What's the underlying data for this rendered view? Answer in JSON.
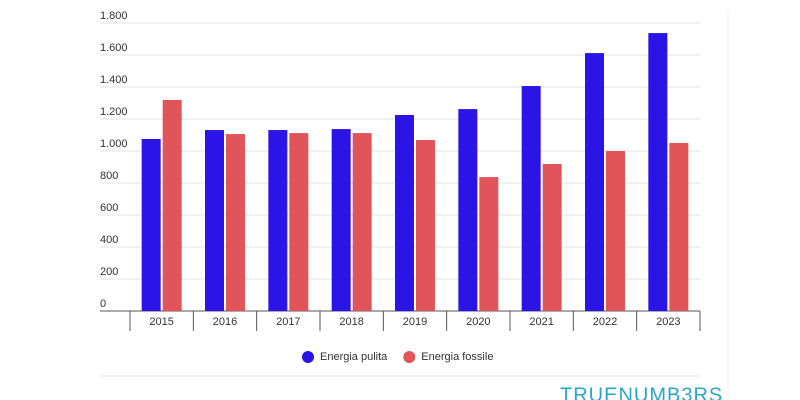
{
  "chart_data": {
    "type": "bar",
    "categories": [
      "2015",
      "2016",
      "2017",
      "2018",
      "2019",
      "2020",
      "2021",
      "2022",
      "2023"
    ],
    "series": [
      {
        "name": "Energia pulita",
        "color": "#2b14e6",
        "values": [
          1075,
          1131,
          1131,
          1137,
          1225,
          1262,
          1406,
          1612,
          1737
        ]
      },
      {
        "name": "Energia fossile",
        "color": "#e0545a",
        "values": [
          1319,
          1106,
          1112,
          1112,
          1069,
          837,
          919,
          1000,
          1050
        ]
      }
    ],
    "ylim": [
      0,
      1800
    ],
    "yticks": [
      0,
      200,
      400,
      600,
      800,
      {
        "value": 1000,
        "label": "1.000"
      },
      {
        "value": 1200,
        "label": "1.200"
      },
      {
        "value": 1400,
        "label": "1.400"
      },
      {
        "value": 1600,
        "label": "1.600"
      },
      {
        "value": 1800,
        "label": "1.800"
      }
    ],
    "grid": true,
    "legend": "bottom",
    "source": "TRUENUMB3RS"
  }
}
